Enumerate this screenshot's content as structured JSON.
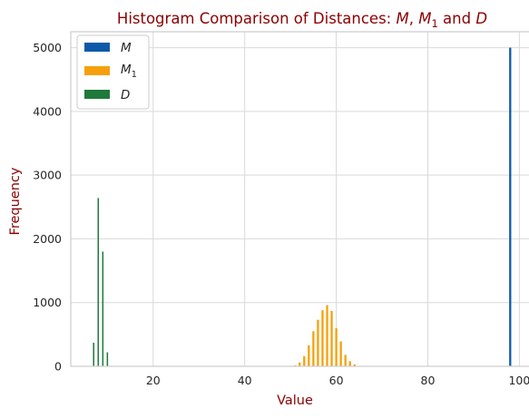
{
  "chart_data": {
    "type": "bar",
    "title": {
      "prefix": "Histogram Comparison of Distances: ",
      "m": "M",
      "sep1": ", ",
      "m1_base": "M",
      "m1_sub": "1",
      "sep2": " and ",
      "d": "D"
    },
    "xlabel": "Value",
    "ylabel": "Frequency",
    "xlim": [
      2,
      102.5
    ],
    "ylim": [
      0,
      5250
    ],
    "xticks": [
      20,
      40,
      60,
      80,
      100
    ],
    "yticks": [
      0,
      1000,
      2000,
      3000,
      4000,
      5000
    ],
    "grid": true,
    "legend_position": "top-left",
    "series": [
      {
        "name": "M",
        "name_base": "M",
        "name_sub": "",
        "color": "#0b5aa8",
        "bar_width": 0.45,
        "x": [
          98
        ],
        "values": [
          5000
        ]
      },
      {
        "name": "M1",
        "name_base": "M",
        "name_sub": "1",
        "color": "#f5a00a",
        "bar_width": 0.45,
        "x": [
          51,
          52,
          53,
          54,
          55,
          56,
          57,
          58,
          59,
          60,
          61,
          62,
          63,
          64,
          65
        ],
        "values": [
          15,
          60,
          160,
          330,
          550,
          730,
          880,
          960,
          870,
          600,
          390,
          180,
          80,
          30,
          5
        ]
      },
      {
        "name": "D",
        "name_base": "D",
        "name_sub": "",
        "color": "#1e7a3a",
        "bar_width": 0.3,
        "x": [
          7,
          8,
          9,
          10
        ],
        "values": [
          370,
          2640,
          1800,
          220
        ]
      }
    ]
  }
}
